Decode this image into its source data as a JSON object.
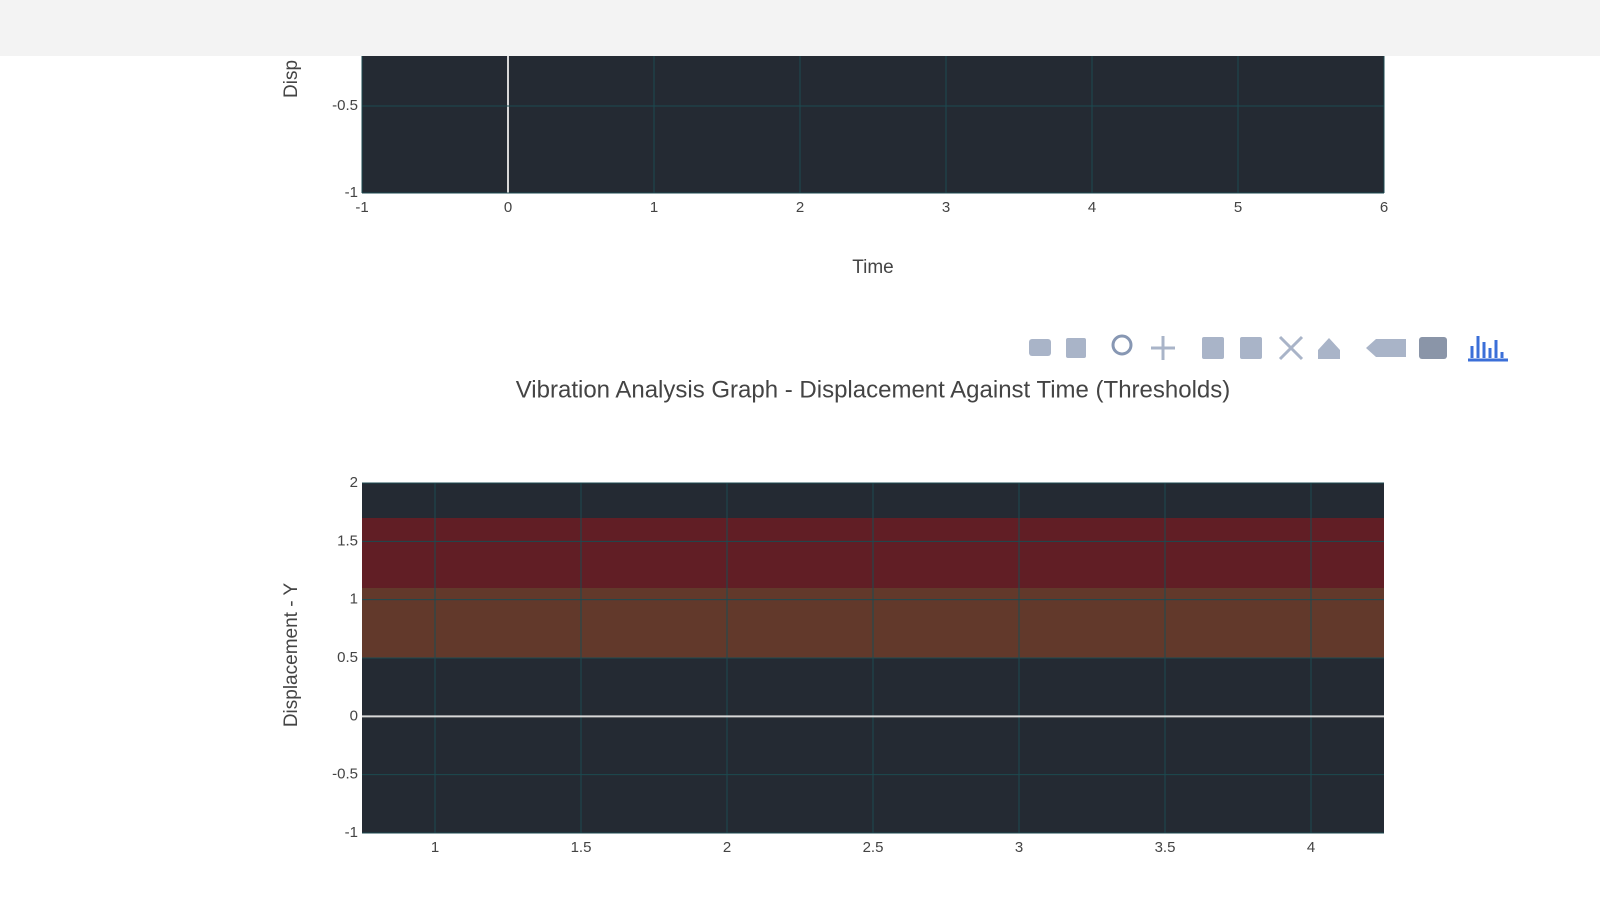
{
  "chart_data": [
    {
      "type": "line",
      "x_label": "Time",
      "y_label": "Disp",
      "xlim": [
        -1,
        6
      ],
      "xticks": [
        -1,
        0,
        1,
        2,
        3,
        4,
        5,
        6
      ],
      "ylim": [
        -1,
        2
      ],
      "yticks": [
        -1,
        -0.5
      ],
      "background": "#242a33",
      "grid": true
    },
    {
      "type": "line",
      "title": "Vibration Analysis Graph - Displacement Against Time (Thresholds)",
      "y_label": "Displacement - Y",
      "xlim": [
        0.75,
        4.25
      ],
      "xticks": [
        1,
        1.5,
        2,
        2.5,
        3,
        3.5,
        4
      ],
      "ylim": [
        -1,
        2
      ],
      "yticks": [
        -1,
        -0.5,
        0,
        0.5,
        1,
        1.5,
        2
      ],
      "background": "#242a33",
      "grid": true,
      "thresholds": [
        {
          "from": 0.5,
          "to": 1.1,
          "color": "#663a2b"
        },
        {
          "from": 1.1,
          "to": 1.7,
          "color": "#651d25"
        }
      ]
    }
  ]
}
